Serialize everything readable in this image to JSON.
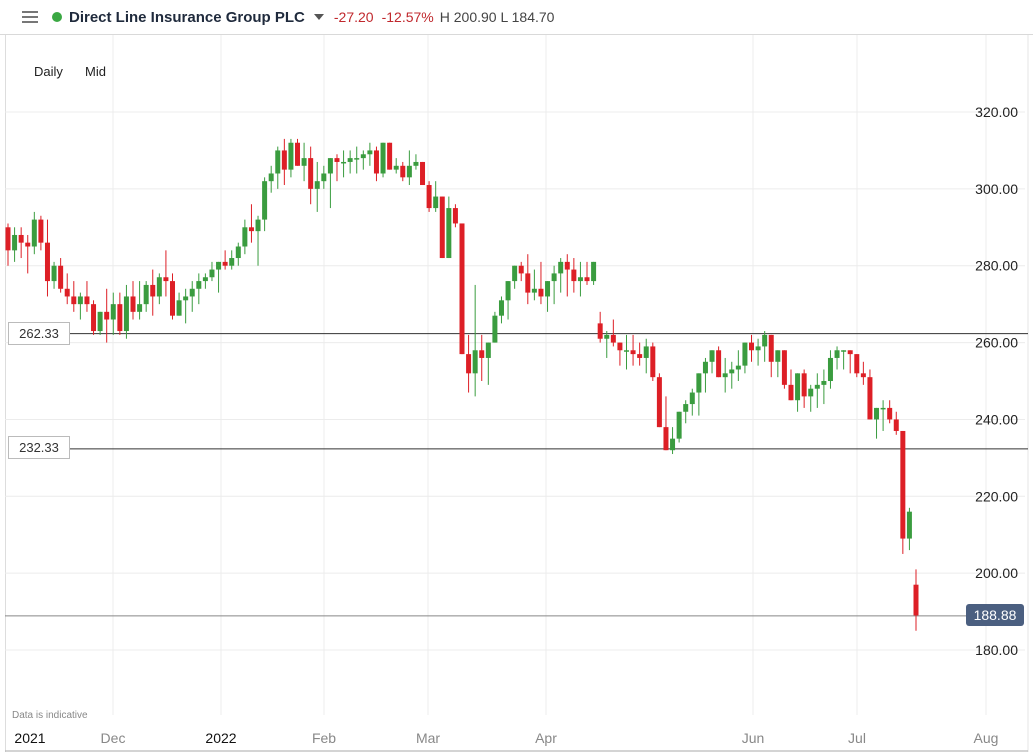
{
  "header": {
    "instrument": "Direct Line Insurance Group PLC",
    "change": "-27.20",
    "change_pct": "-12.57%",
    "high_low": "H 200.90  L 184.70",
    "status_color": "#3aa843",
    "icons": {
      "menu": "hamburger-menu-icon",
      "dropdown": "caret-down-icon"
    }
  },
  "toolbar": {
    "interval": "Daily",
    "price_type": "Mid"
  },
  "footer": {
    "note": "Data is indicative"
  },
  "horizontal_lines": [
    {
      "label": "262.33",
      "value": 262.33
    },
    {
      "label": "232.33",
      "value": 232.33
    }
  ],
  "current_price": {
    "label": "188.88",
    "value": 188.88
  },
  "colors": {
    "up": "#3a9c3f",
    "down": "#dd1f26",
    "grid": "#ececec",
    "hline": "#333333",
    "tag": "#4b5f80"
  },
  "chart_data": {
    "type": "candlestick",
    "title": "Direct Line Insurance Group PLC",
    "xlabel": "",
    "ylabel": "",
    "ylim": [
      160,
      335
    ],
    "y_ticks": [
      "320.00",
      "300.00",
      "280.00",
      "260.00",
      "240.00",
      "220.00",
      "200.00",
      "180.00"
    ],
    "x_ticks": [
      {
        "label": "2021",
        "x": 30,
        "year": true
      },
      {
        "label": "Dec",
        "x": 113,
        "year": false
      },
      {
        "label": "2022",
        "x": 221,
        "year": true
      },
      {
        "label": "Feb",
        "x": 324,
        "year": false
      },
      {
        "label": "Mar",
        "x": 428,
        "year": false
      },
      {
        "label": "Apr",
        "x": 546,
        "year": false
      },
      {
        "label": "Jun",
        "x": 753,
        "year": false
      },
      {
        "label": "Jul",
        "x": 857,
        "year": false
      },
      {
        "label": "Aug",
        "x": 986,
        "year": false
      }
    ],
    "grid": true,
    "candles": [
      [
        290,
        291,
        280,
        284
      ],
      [
        284,
        290,
        281,
        288
      ],
      [
        288,
        290,
        282,
        286
      ],
      [
        286,
        288,
        278,
        285
      ],
      [
        285,
        294,
        283,
        292
      ],
      [
        292,
        293,
        284,
        286
      ],
      [
        286,
        292,
        272,
        276
      ],
      [
        276,
        281,
        274,
        280
      ],
      [
        280,
        282,
        273,
        274
      ],
      [
        274,
        278,
        270,
        272
      ],
      [
        272,
        276,
        268,
        270
      ],
      [
        270,
        273,
        266,
        272
      ],
      [
        272,
        276,
        268,
        270
      ],
      [
        270,
        271,
        262,
        263
      ],
      [
        263,
        268,
        262,
        268
      ],
      [
        268,
        274,
        260,
        266
      ],
      [
        266,
        273,
        262,
        270
      ],
      [
        270,
        273,
        262,
        263
      ],
      [
        263,
        275,
        261,
        272
      ],
      [
        272,
        276,
        266,
        268
      ],
      [
        268,
        276,
        266,
        270
      ],
      [
        270,
        276,
        268,
        275
      ],
      [
        275,
        279,
        267,
        272
      ],
      [
        272,
        278,
        270,
        277
      ],
      [
        277,
        284,
        272,
        276
      ],
      [
        276,
        278,
        266,
        267
      ],
      [
        267,
        273,
        267,
        271
      ],
      [
        271,
        274,
        265,
        272
      ],
      [
        272,
        276,
        268,
        274
      ],
      [
        274,
        278,
        270,
        276
      ],
      [
        276,
        278,
        274,
        277
      ],
      [
        277,
        281,
        276,
        279
      ],
      [
        279,
        281,
        273,
        281
      ],
      [
        281,
        284,
        279,
        280
      ],
      [
        280,
        284,
        279,
        282
      ],
      [
        282,
        286,
        280,
        285
      ],
      [
        285,
        292,
        283,
        290
      ],
      [
        290,
        296,
        286,
        289
      ],
      [
        289,
        293,
        280,
        292
      ],
      [
        292,
        303,
        289,
        302
      ],
      [
        302,
        306,
        299,
        304
      ],
      [
        304,
        311,
        300,
        310
      ],
      [
        310,
        313,
        301,
        305
      ],
      [
        305,
        313,
        303,
        312
      ],
      [
        312,
        313,
        306,
        306
      ],
      [
        306,
        312,
        302,
        308
      ],
      [
        308,
        311,
        296,
        300
      ],
      [
        300,
        307,
        294,
        302
      ],
      [
        302,
        306,
        300,
        304
      ],
      [
        304,
        308,
        295,
        308
      ],
      [
        308,
        309,
        302,
        307
      ],
      [
        307,
        310,
        303,
        307
      ],
      [
        307,
        310,
        304,
        308
      ],
      [
        308,
        311,
        304,
        308
      ],
      [
        308,
        310,
        305,
        309
      ],
      [
        309,
        312,
        306,
        310
      ],
      [
        310,
        311,
        302,
        304
      ],
      [
        304,
        310,
        303,
        312
      ],
      [
        312,
        312,
        305,
        305
      ],
      [
        305,
        308,
        304,
        306
      ],
      [
        306,
        307,
        302,
        303
      ],
      [
        303,
        310,
        301,
        306
      ],
      [
        306,
        309,
        305,
        307
      ],
      [
        307,
        306,
        302,
        301
      ],
      [
        301,
        302,
        294,
        295
      ],
      [
        295,
        302,
        294,
        298
      ],
      [
        298,
        296,
        282,
        282
      ],
      [
        282,
        298,
        282,
        295
      ],
      [
        295,
        296,
        290,
        291
      ],
      [
        291,
        291,
        257,
        257
      ],
      [
        257,
        262,
        247,
        252
      ],
      [
        252,
        275,
        246,
        258
      ],
      [
        258,
        262,
        250,
        256
      ],
      [
        256,
        258,
        249,
        260
      ],
      [
        260,
        268,
        260,
        267
      ],
      [
        267,
        272,
        265,
        271
      ],
      [
        271,
        275,
        266,
        276
      ],
      [
        276,
        280,
        274,
        280
      ],
      [
        280,
        281,
        276,
        278
      ],
      [
        278,
        283,
        270,
        273
      ],
      [
        273,
        279,
        271,
        274
      ],
      [
        274,
        281,
        270,
        272
      ],
      [
        272,
        276,
        268,
        276
      ],
      [
        276,
        280,
        270,
        278
      ],
      [
        278,
        282,
        273,
        281
      ],
      [
        281,
        283,
        272,
        279
      ],
      [
        279,
        282,
        273,
        276
      ],
      [
        276,
        281,
        272,
        277
      ],
      [
        277,
        281,
        275,
        276
      ],
      [
        276,
        278,
        275,
        281
      ],
      [
        265,
        268,
        260,
        261
      ],
      [
        261,
        263,
        256,
        262
      ],
      [
        262,
        266,
        259,
        260
      ],
      [
        260,
        259,
        254,
        258
      ],
      [
        258,
        262,
        253,
        258
      ],
      [
        258,
        262,
        254,
        257
      ],
      [
        257,
        260,
        254,
        256
      ],
      [
        256,
        261,
        252,
        259
      ],
      [
        259,
        260,
        250,
        251
      ],
      [
        251,
        252,
        244,
        238
      ],
      [
        238,
        246,
        232,
        232
      ],
      [
        232,
        238,
        231,
        235
      ],
      [
        235,
        241,
        234,
        242
      ],
      [
        242,
        245,
        239,
        244
      ],
      [
        244,
        248,
        241,
        247
      ],
      [
        247,
        250,
        241,
        252
      ],
      [
        252,
        256,
        247,
        255
      ],
      [
        255,
        258,
        252,
        258
      ],
      [
        258,
        259,
        251,
        251
      ],
      [
        251,
        256,
        247,
        252
      ],
      [
        252,
        255,
        248,
        253
      ],
      [
        253,
        258,
        250,
        254
      ],
      [
        254,
        259,
        252,
        260
      ],
      [
        260,
        262,
        255,
        258
      ],
      [
        258,
        261,
        254,
        259
      ],
      [
        259,
        263,
        255,
        262
      ],
      [
        262,
        262,
        251,
        255
      ],
      [
        255,
        258,
        251,
        258
      ],
      [
        258,
        257,
        248,
        249
      ],
      [
        249,
        253,
        245,
        245
      ],
      [
        245,
        250,
        242,
        252
      ],
      [
        252,
        253,
        243,
        246
      ],
      [
        246,
        249,
        242,
        248
      ],
      [
        248,
        252,
        243,
        249
      ],
      [
        249,
        253,
        244,
        250
      ],
      [
        250,
        258,
        248,
        256
      ],
      [
        256,
        259,
        253,
        258
      ],
      [
        258,
        258,
        253,
        258
      ],
      [
        258,
        257,
        252,
        257
      ],
      [
        257,
        255,
        251,
        252
      ],
      [
        252,
        255,
        249,
        251
      ],
      [
        251,
        253,
        244,
        240
      ],
      [
        240,
        242,
        235,
        243
      ],
      [
        243,
        245,
        237,
        243
      ],
      [
        243,
        245,
        239,
        240
      ],
      [
        240,
        242,
        236,
        237
      ],
      [
        237,
        236,
        205,
        209
      ],
      [
        209,
        217,
        206,
        216
      ],
      [
        197,
        201,
        185,
        189
      ]
    ]
  }
}
